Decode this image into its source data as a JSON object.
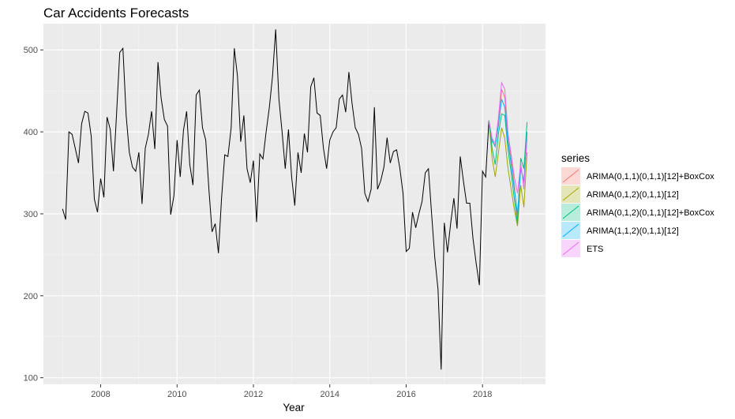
{
  "chart_data": {
    "type": "line",
    "title": "Car Accidents Forecasts",
    "xlabel": "Year",
    "ylabel": "",
    "xlim": [
      2006.5,
      2019.65
    ],
    "ylim": [
      92,
      532
    ],
    "x_ticks": [
      2008,
      2010,
      2012,
      2014,
      2016,
      2018
    ],
    "y_ticks": [
      100,
      200,
      300,
      400,
      500
    ],
    "x_tick_labels": [
      "2008",
      "2010",
      "2012",
      "2014",
      "2016",
      "2018"
    ],
    "y_tick_labels": [
      "100",
      "200",
      "300",
      "400",
      "500"
    ],
    "grid": true,
    "legend": {
      "title": "series",
      "position": "right"
    },
    "colors": {
      "panel": "#ebebeb",
      "grid_major": "#ffffff",
      "history": "#000000"
    },
    "history": {
      "name": "",
      "x": [
        2007.0,
        2007.083,
        2007.167,
        2007.25,
        2007.333,
        2007.417,
        2007.5,
        2007.583,
        2007.667,
        2007.75,
        2007.833,
        2007.917,
        2008.0,
        2008.083,
        2008.167,
        2008.25,
        2008.333,
        2008.417,
        2008.5,
        2008.583,
        2008.667,
        2008.75,
        2008.833,
        2008.917,
        2009.0,
        2009.083,
        2009.167,
        2009.25,
        2009.333,
        2009.417,
        2009.5,
        2009.583,
        2009.667,
        2009.75,
        2009.833,
        2009.917,
        2010.0,
        2010.083,
        2010.167,
        2010.25,
        2010.333,
        2010.417,
        2010.5,
        2010.583,
        2010.667,
        2010.75,
        2010.833,
        2010.917,
        2011.0,
        2011.083,
        2011.167,
        2011.25,
        2011.333,
        2011.417,
        2011.5,
        2011.583,
        2011.667,
        2011.75,
        2011.833,
        2011.917,
        2012.0,
        2012.083,
        2012.167,
        2012.25,
        2012.333,
        2012.417,
        2012.5,
        2012.583,
        2012.667,
        2012.75,
        2012.833,
        2012.917,
        2013.0,
        2013.083,
        2013.167,
        2013.25,
        2013.333,
        2013.417,
        2013.5,
        2013.583,
        2013.667,
        2013.75,
        2013.833,
        2013.917,
        2014.0,
        2014.083,
        2014.167,
        2014.25,
        2014.333,
        2014.417,
        2014.5,
        2014.583,
        2014.667,
        2014.75,
        2014.833,
        2014.917,
        2015.0,
        2015.083,
        2015.167,
        2015.25,
        2015.333,
        2015.417,
        2015.5,
        2015.583,
        2015.667,
        2015.75,
        2015.833,
        2015.917,
        2016.0,
        2016.083,
        2016.167,
        2016.25,
        2016.333,
        2016.417,
        2016.5,
        2016.583,
        2016.667,
        2016.75,
        2016.833,
        2016.917,
        2017.0,
        2017.083,
        2017.167,
        2017.25,
        2017.333,
        2017.417,
        2017.5,
        2017.583,
        2017.667,
        2017.75,
        2017.833,
        2017.917,
        2018.0,
        2018.083,
        2018.167
      ],
      "y": [
        306,
        293,
        400,
        397,
        380,
        362,
        410,
        425,
        423,
        395,
        318,
        302,
        343,
        320,
        418,
        403,
        352,
        423,
        497,
        502,
        420,
        375,
        357,
        352,
        375,
        312,
        380,
        397,
        425,
        379,
        485,
        441,
        415,
        407,
        299,
        322,
        390,
        345,
        402,
        425,
        360,
        335,
        445,
        451,
        405,
        390,
        330,
        278,
        288,
        252,
        320,
        372,
        370,
        405,
        502,
        468,
        388,
        420,
        355,
        338,
        365,
        290,
        373,
        367,
        400,
        430,
        468,
        525,
        440,
        400,
        355,
        403,
        345,
        310,
        375,
        350,
        398,
        375,
        455,
        466,
        423,
        420,
        380,
        355,
        390,
        400,
        405,
        440,
        445,
        424,
        473,
        435,
        405,
        397,
        380,
        325,
        315,
        330,
        430,
        330,
        340,
        357,
        393,
        362,
        376,
        378,
        356,
        325,
        254,
        258,
        302,
        283,
        300,
        315,
        350,
        355,
        300,
        247,
        208,
        110,
        289,
        253,
        289,
        319,
        282,
        370,
        340,
        313,
        313,
        270,
        240,
        213,
        352,
        345,
        414
      ]
    },
    "x": [
      2018.25,
      2018.333,
      2018.417,
      2018.5,
      2018.583,
      2018.667,
      2018.75,
      2018.833,
      2018.917,
      2019.0,
      2019.083,
      2019.167
    ],
    "series": [
      {
        "name": "ARIMA(0,1,1)(0,1,1)[12]+BoxCox",
        "color": "#F8766D",
        "values": [
          388,
          384,
          410,
          452,
          442,
          390,
          368,
          335,
          292,
          358,
          338,
          392
        ]
      },
      {
        "name": "ARIMA(0,1,2)(0,1,1)[12]",
        "color": "#A3A500",
        "values": [
          368,
          345,
          375,
          405,
          392,
          355,
          330,
          305,
          285,
          335,
          308,
          375
        ]
      },
      {
        "name": "ARIMA(0,1,2)(0,1,1)[12]+BoxCox",
        "color": "#00BF7D",
        "values": [
          380,
          360,
          398,
          422,
          420,
          378,
          350,
          318,
          288,
          368,
          355,
          412
        ]
      },
      {
        "name": "ARIMA(1,1,2)(0,1,1)[12]",
        "color": "#00B0F6",
        "values": [
          390,
          382,
          408,
          440,
          430,
          388,
          360,
          330,
          300,
          355,
          340,
          400
        ]
      },
      {
        "name": "ETS",
        "color": "#E76BF3",
        "values": [
          392,
          386,
          418,
          460,
          452,
          398,
          372,
          345,
          325,
          362,
          330,
          395
        ]
      }
    ]
  }
}
